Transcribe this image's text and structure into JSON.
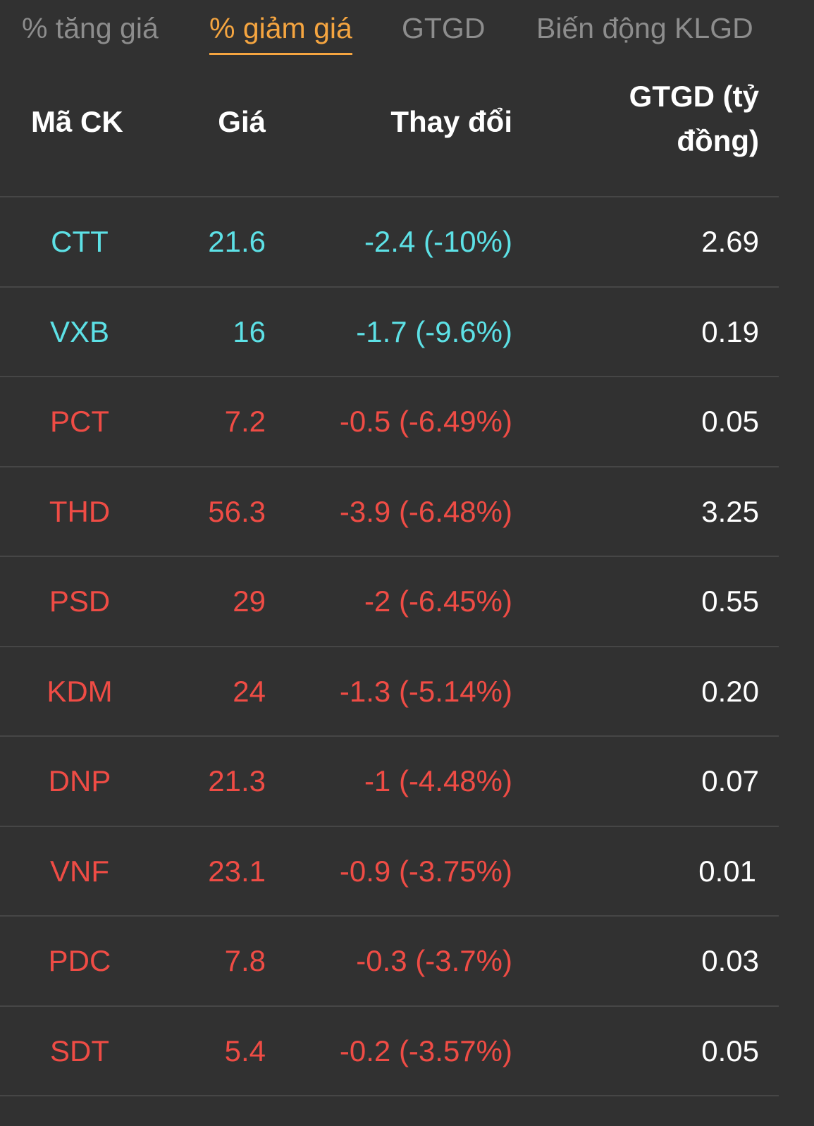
{
  "tabs": [
    {
      "label": "% tăng giá",
      "active": false
    },
    {
      "label": "% giảm giá",
      "active": true
    },
    {
      "label": "GTGD",
      "active": false
    },
    {
      "label": "Biến động KLGD",
      "active": false
    }
  ],
  "table": {
    "headers": {
      "code": "Mã CK",
      "price": "Giá",
      "change": "Thay đổi",
      "value_line1": "GTGD (tỷ",
      "value_line2": "đồng)"
    },
    "rows": [
      {
        "code": "CTT",
        "price": "21.6",
        "change": "-2.4 (-10%)",
        "value": "2.69",
        "status": "floor"
      },
      {
        "code": "VXB",
        "price": "16",
        "change": "-1.7 (-9.6%)",
        "value": "0.19",
        "status": "floor"
      },
      {
        "code": "PCT",
        "price": "7.2",
        "change": "-0.5 (-6.49%)",
        "value": "0.05",
        "status": "down"
      },
      {
        "code": "THD",
        "price": "56.3",
        "change": "-3.9 (-6.48%)",
        "value": "3.25",
        "status": "down"
      },
      {
        "code": "PSD",
        "price": "29",
        "change": "-2 (-6.45%)",
        "value": "0.55",
        "status": "down"
      },
      {
        "code": "KDM",
        "price": "24",
        "change": "-1.3 (-5.14%)",
        "value": "0.20",
        "status": "down"
      },
      {
        "code": "DNP",
        "price": "21.3",
        "change": "-1 (-4.48%)",
        "value": "0.07",
        "status": "down"
      },
      {
        "code": "VNF",
        "price": "23.1",
        "change": "-0.9 (-3.75%)",
        "value": "0.01",
        "status": "down"
      },
      {
        "code": "PDC",
        "price": "7.8",
        "change": "-0.3 (-3.7%)",
        "value": "0.03",
        "status": "down"
      },
      {
        "code": "SDT",
        "price": "5.4",
        "change": "-0.2 (-3.57%)",
        "value": "0.05",
        "status": "down"
      }
    ]
  },
  "colors": {
    "background": "#313131",
    "active_tab": "#f5a540",
    "inactive_tab": "#8d8d8d",
    "floor": "#5de1e6",
    "down": "#ef4c45",
    "divider": "#464646"
  }
}
